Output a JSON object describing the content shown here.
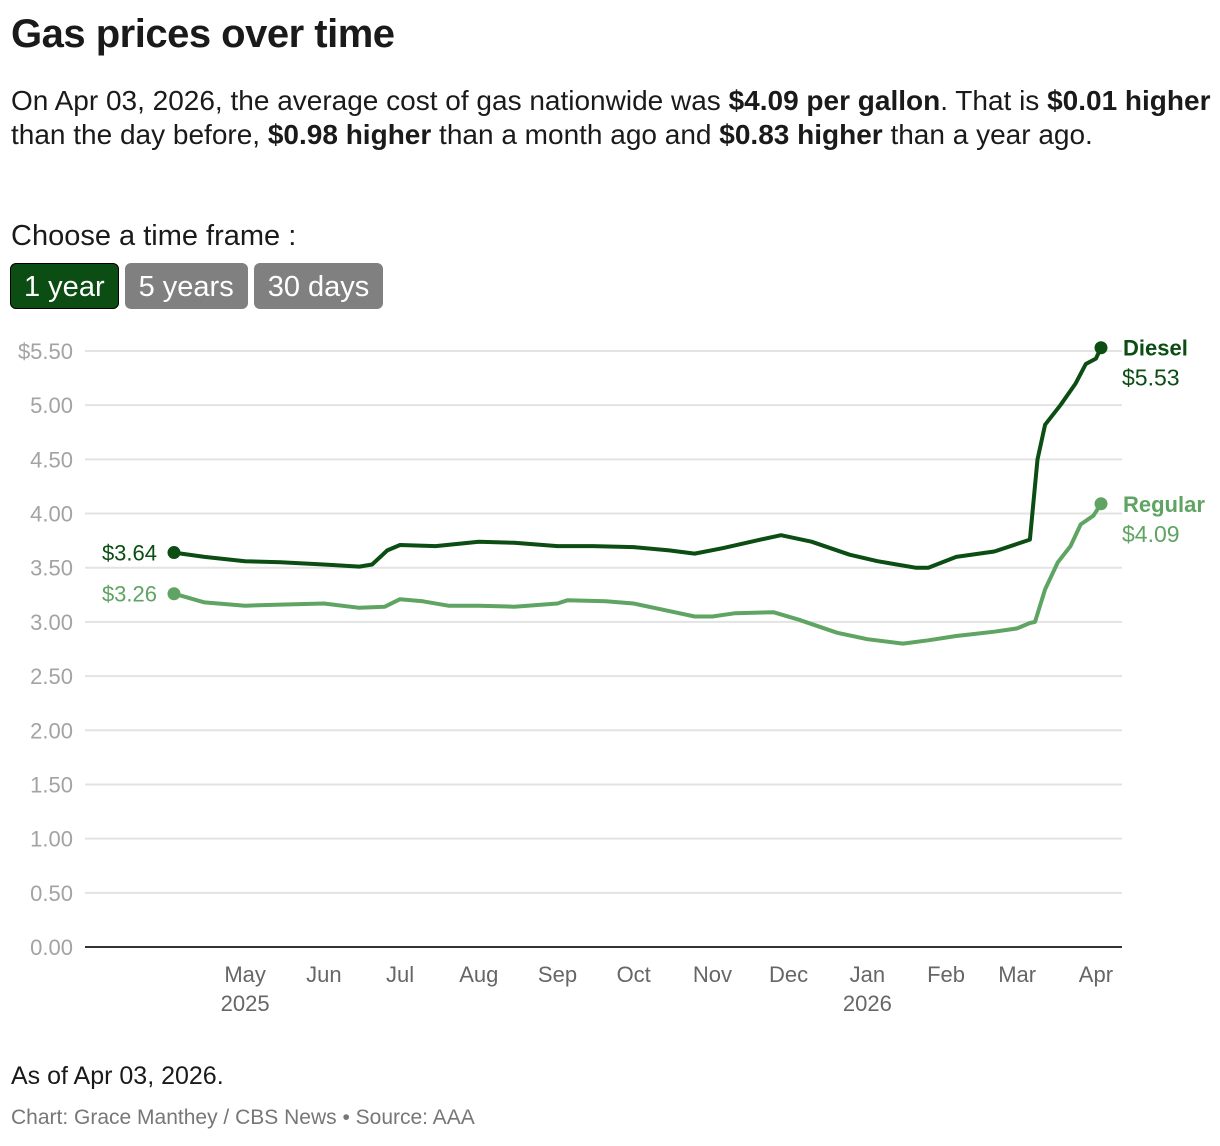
{
  "title": "Gas prices over time",
  "intro": {
    "p1": "On Apr 03, 2026, the average cost of gas nationwide was ",
    "b1": "$4.09 per gallon",
    "p2": ". That is ",
    "b2": "$0.01 higher",
    "p3": " than the day before, ",
    "b3": "$0.98 higher",
    "p4": " than a month ago and ",
    "b4": "$0.83 higher",
    "p5": " than a year ago."
  },
  "timeframe": {
    "label": "Choose a time frame :",
    "options": [
      "1 year",
      "5 years",
      "30 days"
    ],
    "selected": "1 year"
  },
  "footer": {
    "as_of": "As of Apr 03, 2026.",
    "credit": "Chart: Grace Manthey / CBS News • Source: AAA"
  },
  "chart_data": {
    "type": "line",
    "ylim": [
      0,
      5.5
    ],
    "y_ticks": [
      "$5.50",
      "5.00",
      "4.50",
      "4.00",
      "3.50",
      "3.00",
      "2.50",
      "2.00",
      "1.50",
      "1.00",
      "0.50",
      "0.00"
    ],
    "y_tick_values": [
      5.5,
      5,
      4.5,
      4,
      3.5,
      3,
      2.5,
      2,
      1.5,
      1,
      0.5,
      0
    ],
    "x_ticks": [
      {
        "label": "May",
        "sub": "2025",
        "date": "2025-05-01"
      },
      {
        "label": "Jun",
        "date": "2025-06-01"
      },
      {
        "label": "Jul",
        "date": "2025-07-01"
      },
      {
        "label": "Aug",
        "date": "2025-08-01"
      },
      {
        "label": "Sep",
        "date": "2025-09-01"
      },
      {
        "label": "Oct",
        "date": "2025-10-01"
      },
      {
        "label": "Nov",
        "date": "2025-11-01"
      },
      {
        "label": "Dec",
        "date": "2025-12-01"
      },
      {
        "label": "Jan",
        "sub": "2026",
        "date": "2026-01-01"
      },
      {
        "label": "Feb",
        "date": "2026-02-01"
      },
      {
        "label": "Mar",
        "date": "2026-03-01"
      },
      {
        "label": "Apr",
        "date": "2026-04-01"
      }
    ],
    "xlim": [
      "2025-04-03",
      "2026-04-03"
    ],
    "grid": true,
    "series": [
      {
        "name": "Diesel",
        "color": "#0b4d12",
        "start_label": "$3.64",
        "end_label": "$5.53",
        "x": [
          "2025-04-03",
          "2025-04-15",
          "2025-05-01",
          "2025-05-15",
          "2025-06-01",
          "2025-06-15",
          "2025-06-20",
          "2025-06-26",
          "2025-07-01",
          "2025-07-15",
          "2025-08-01",
          "2025-08-15",
          "2025-09-01",
          "2025-09-15",
          "2025-10-01",
          "2025-10-15",
          "2025-10-25",
          "2025-11-05",
          "2025-11-20",
          "2025-11-28",
          "2025-12-10",
          "2025-12-25",
          "2026-01-05",
          "2026-01-20",
          "2026-01-25",
          "2026-02-05",
          "2026-02-20",
          "2026-03-01",
          "2026-03-06",
          "2026-03-09",
          "2026-03-12",
          "2026-03-18",
          "2026-03-24",
          "2026-03-28",
          "2026-04-01",
          "2026-04-03"
        ],
        "y": [
          3.64,
          3.6,
          3.56,
          3.55,
          3.53,
          3.51,
          3.53,
          3.66,
          3.71,
          3.7,
          3.74,
          3.73,
          3.7,
          3.7,
          3.69,
          3.66,
          3.63,
          3.68,
          3.76,
          3.8,
          3.74,
          3.62,
          3.56,
          3.5,
          3.5,
          3.6,
          3.65,
          3.72,
          3.76,
          4.5,
          4.82,
          5.0,
          5.2,
          5.38,
          5.43,
          5.53
        ]
      },
      {
        "name": "Regular",
        "color": "#5fa462",
        "start_label": "$3.26",
        "end_label": "$4.09",
        "x": [
          "2025-04-03",
          "2025-04-15",
          "2025-05-01",
          "2025-05-15",
          "2025-06-01",
          "2025-06-15",
          "2025-06-25",
          "2025-07-01",
          "2025-07-10",
          "2025-07-20",
          "2025-08-01",
          "2025-08-15",
          "2025-09-01",
          "2025-09-05",
          "2025-09-20",
          "2025-10-01",
          "2025-10-15",
          "2025-10-25",
          "2025-11-01",
          "2025-11-10",
          "2025-11-25",
          "2025-12-05",
          "2025-12-20",
          "2026-01-01",
          "2026-01-15",
          "2026-01-25",
          "2026-02-05",
          "2026-02-20",
          "2026-03-01",
          "2026-03-06",
          "2026-03-08",
          "2026-03-12",
          "2026-03-17",
          "2026-03-22",
          "2026-03-26",
          "2026-03-31",
          "2026-04-03"
        ],
        "y": [
          3.26,
          3.18,
          3.15,
          3.16,
          3.17,
          3.13,
          3.14,
          3.21,
          3.19,
          3.15,
          3.15,
          3.14,
          3.17,
          3.2,
          3.19,
          3.17,
          3.1,
          3.05,
          3.05,
          3.08,
          3.09,
          3.02,
          2.9,
          2.84,
          2.8,
          2.83,
          2.87,
          2.91,
          2.94,
          2.99,
          3.0,
          3.3,
          3.55,
          3.7,
          3.9,
          3.98,
          4.09
        ]
      }
    ]
  }
}
